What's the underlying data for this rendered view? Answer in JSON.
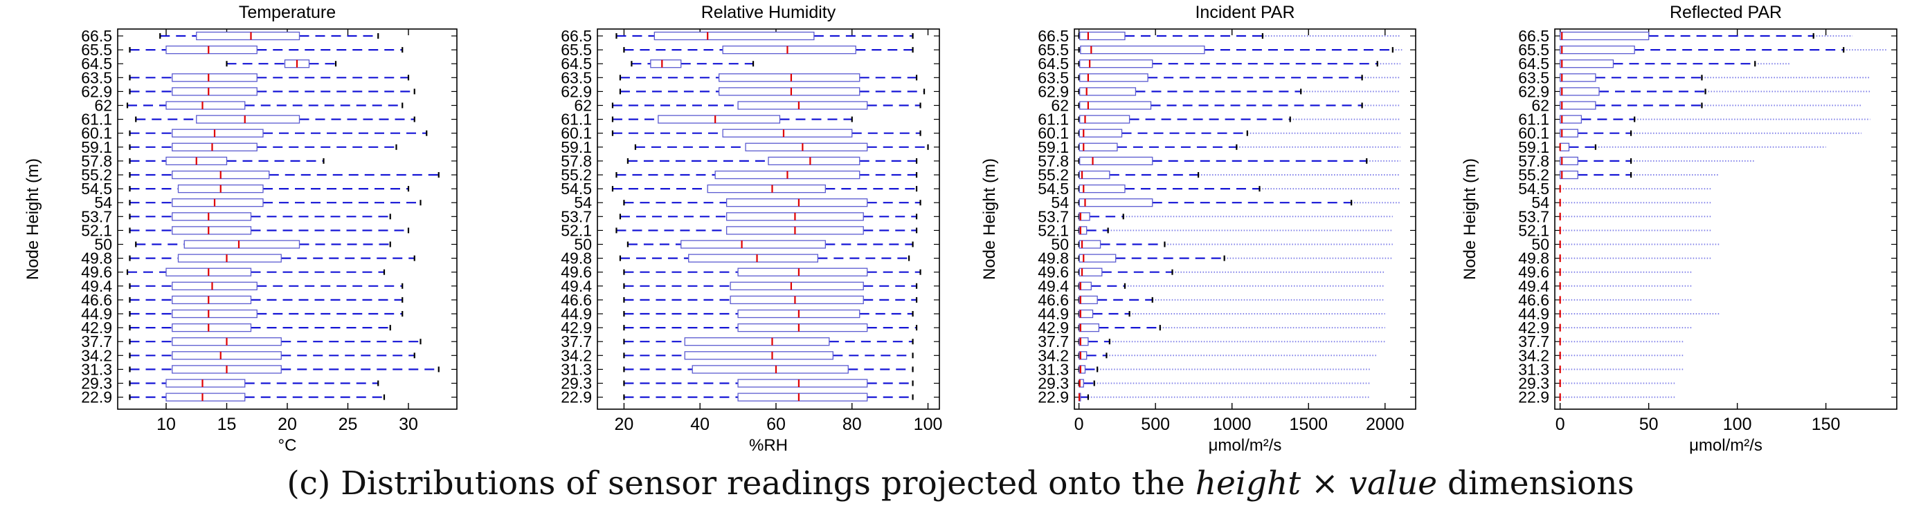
{
  "heights": [
    "66.5",
    "65.5",
    "64.5",
    "63.5",
    "62.9",
    "62",
    "61.1",
    "60.1",
    "59.1",
    "57.8",
    "55.2",
    "54.5",
    "54",
    "53.7",
    "52.1",
    "50",
    "49.8",
    "49.6",
    "49.4",
    "46.6",
    "44.9",
    "42.9",
    "37.7",
    "34.2",
    "31.3",
    "29.3",
    "22.9"
  ],
  "caption": {
    "prefix": "(c) Distributions of sensor readings projected onto the ",
    "italic1": "height",
    "times": " × ",
    "italic2": "value",
    "suffix": " dimensions"
  },
  "colors": {
    "box": "#5a5ad0",
    "whisker": "#1515d6",
    "median": "#e00000",
    "outlier": "#1515d6",
    "axis": "#000000"
  },
  "chart_data": [
    {
      "type": "boxplot",
      "title": "Temperature",
      "xlabel": "°C",
      "ylabel": "Node Height (m)",
      "xlim": [
        6,
        34
      ],
      "xticks": [
        10,
        15,
        20,
        25,
        30
      ],
      "categories": [
        "66.5",
        "65.5",
        "64.5",
        "63.5",
        "62.9",
        "62",
        "61.1",
        "60.1",
        "59.1",
        "57.8",
        "55.2",
        "54.5",
        "54",
        "53.7",
        "52.1",
        "50",
        "49.8",
        "49.6",
        "49.4",
        "46.6",
        "44.9",
        "42.9",
        "37.7",
        "34.2",
        "31.3",
        "29.3",
        "22.9"
      ],
      "boxes": [
        {
          "wlo": 9.5,
          "q1": 12.5,
          "med": 17.0,
          "q3": 21.0,
          "whi": 27.5
        },
        {
          "wlo": 7.0,
          "q1": 10.0,
          "med": 13.5,
          "q3": 17.5,
          "whi": 29.5
        },
        {
          "wlo": 15.0,
          "q1": 19.8,
          "med": 20.8,
          "q3": 21.8,
          "whi": 24.0
        },
        {
          "wlo": 7.0,
          "q1": 10.5,
          "med": 13.5,
          "q3": 17.5,
          "whi": 30.0
        },
        {
          "wlo": 7.0,
          "q1": 10.5,
          "med": 13.5,
          "q3": 17.5,
          "whi": 30.5
        },
        {
          "wlo": 6.8,
          "q1": 10.0,
          "med": 13.0,
          "q3": 16.5,
          "whi": 29.5
        },
        {
          "wlo": 7.5,
          "q1": 12.5,
          "med": 16.5,
          "q3": 21.0,
          "whi": 30.5
        },
        {
          "wlo": 7.0,
          "q1": 10.5,
          "med": 14.0,
          "q3": 18.0,
          "whi": 31.5
        },
        {
          "wlo": 7.0,
          "q1": 10.5,
          "med": 13.8,
          "q3": 17.5,
          "whi": 29.0
        },
        {
          "wlo": 7.0,
          "q1": 10.0,
          "med": 12.5,
          "q3": 15.0,
          "whi": 23.0
        },
        {
          "wlo": 7.0,
          "q1": 10.5,
          "med": 14.5,
          "q3": 18.5,
          "whi": 32.5
        },
        {
          "wlo": 7.0,
          "q1": 11.0,
          "med": 14.5,
          "q3": 18.0,
          "whi": 30.0
        },
        {
          "wlo": 7.0,
          "q1": 10.5,
          "med": 14.0,
          "q3": 18.0,
          "whi": 31.0
        },
        {
          "wlo": 7.0,
          "q1": 10.5,
          "med": 13.5,
          "q3": 17.0,
          "whi": 28.5
        },
        {
          "wlo": 7.0,
          "q1": 10.5,
          "med": 13.5,
          "q3": 17.0,
          "whi": 30.0
        },
        {
          "wlo": 7.5,
          "q1": 11.5,
          "med": 16.0,
          "q3": 21.0,
          "whi": 28.5
        },
        {
          "wlo": 7.0,
          "q1": 11.0,
          "med": 15.0,
          "q3": 19.5,
          "whi": 30.5
        },
        {
          "wlo": 6.8,
          "q1": 10.0,
          "med": 13.5,
          "q3": 17.0,
          "whi": 28.0
        },
        {
          "wlo": 7.0,
          "q1": 10.5,
          "med": 13.8,
          "q3": 17.5,
          "whi": 29.5
        },
        {
          "wlo": 7.0,
          "q1": 10.5,
          "med": 13.5,
          "q3": 17.0,
          "whi": 29.5
        },
        {
          "wlo": 7.0,
          "q1": 10.5,
          "med": 13.5,
          "q3": 17.5,
          "whi": 29.5
        },
        {
          "wlo": 7.0,
          "q1": 10.5,
          "med": 13.5,
          "q3": 17.0,
          "whi": 28.5
        },
        {
          "wlo": 7.0,
          "q1": 10.5,
          "med": 15.0,
          "q3": 19.5,
          "whi": 31.0
        },
        {
          "wlo": 7.0,
          "q1": 10.5,
          "med": 14.5,
          "q3": 19.5,
          "whi": 30.5
        },
        {
          "wlo": 7.0,
          "q1": 10.5,
          "med": 15.0,
          "q3": 19.5,
          "whi": 32.5
        },
        {
          "wlo": 7.0,
          "q1": 10.0,
          "med": 13.0,
          "q3": 16.5,
          "whi": 27.5
        },
        {
          "wlo": 7.0,
          "q1": 10.0,
          "med": 13.0,
          "q3": 16.5,
          "whi": 28.0
        }
      ]
    },
    {
      "type": "boxplot",
      "title": "Relative Humidity",
      "xlabel": "%RH",
      "ylabel": "",
      "xlim": [
        13,
        103
      ],
      "xticks": [
        20,
        40,
        60,
        80,
        100
      ],
      "categories": [
        "66.5",
        "65.5",
        "64.5",
        "63.5",
        "62.9",
        "62",
        "61.1",
        "60.1",
        "59.1",
        "57.8",
        "55.2",
        "54.5",
        "54",
        "53.7",
        "52.1",
        "50",
        "49.8",
        "49.6",
        "49.4",
        "46.6",
        "44.9",
        "42.9",
        "37.7",
        "34.2",
        "31.3",
        "29.3",
        "22.9"
      ],
      "boxes": [
        {
          "wlo": 18.0,
          "q1": 28.0,
          "med": 42.0,
          "q3": 70.0,
          "whi": 96.0
        },
        {
          "wlo": 20.0,
          "q1": 46.0,
          "med": 63.0,
          "q3": 81.0,
          "whi": 96.0
        },
        {
          "wlo": 22.0,
          "q1": 27.0,
          "med": 30.0,
          "q3": 35.0,
          "whi": 54.0
        },
        {
          "wlo": 19.0,
          "q1": 45.0,
          "med": 64.0,
          "q3": 82.0,
          "whi": 97.0
        },
        {
          "wlo": 19.0,
          "q1": 45.0,
          "med": 64.0,
          "q3": 82.0,
          "whi": 99.0
        },
        {
          "wlo": 17.0,
          "q1": 50.0,
          "med": 66.0,
          "q3": 84.0,
          "whi": 98.0
        },
        {
          "wlo": 17.0,
          "q1": 29.0,
          "med": 44.0,
          "q3": 61.0,
          "whi": 80.0
        },
        {
          "wlo": 17.0,
          "q1": 46.0,
          "med": 62.0,
          "q3": 80.0,
          "whi": 98.0
        },
        {
          "wlo": 23.0,
          "q1": 52.0,
          "med": 67.0,
          "q3": 84.0,
          "whi": 100.0
        },
        {
          "wlo": 21.0,
          "q1": 58.0,
          "med": 69.0,
          "q3": 82.0,
          "whi": 97.0
        },
        {
          "wlo": 18.0,
          "q1": 44.0,
          "med": 63.0,
          "q3": 82.0,
          "whi": 97.0
        },
        {
          "wlo": 17.0,
          "q1": 42.0,
          "med": 59.0,
          "q3": 73.0,
          "whi": 97.0
        },
        {
          "wlo": 20.0,
          "q1": 47.0,
          "med": 66.0,
          "q3": 84.0,
          "whi": 98.0
        },
        {
          "wlo": 19.0,
          "q1": 47.0,
          "med": 65.0,
          "q3": 83.0,
          "whi": 97.0
        },
        {
          "wlo": 18.0,
          "q1": 47.0,
          "med": 65.0,
          "q3": 83.0,
          "whi": 97.0
        },
        {
          "wlo": 21.0,
          "q1": 35.0,
          "med": 51.0,
          "q3": 73.0,
          "whi": 96.0
        },
        {
          "wlo": 19.0,
          "q1": 37.0,
          "med": 55.0,
          "q3": 71.0,
          "whi": 95.0
        },
        {
          "wlo": 20.0,
          "q1": 50.0,
          "med": 66.0,
          "q3": 84.0,
          "whi": 98.0
        },
        {
          "wlo": 20.0,
          "q1": 48.0,
          "med": 64.0,
          "q3": 83.0,
          "whi": 97.0
        },
        {
          "wlo": 20.0,
          "q1": 48.0,
          "med": 65.0,
          "q3": 83.0,
          "whi": 97.0
        },
        {
          "wlo": 20.0,
          "q1": 50.0,
          "med": 66.0,
          "q3": 82.0,
          "whi": 96.0
        },
        {
          "wlo": 20.0,
          "q1": 50.0,
          "med": 66.0,
          "q3": 84.0,
          "whi": 97.0
        },
        {
          "wlo": 20.0,
          "q1": 36.0,
          "med": 59.0,
          "q3": 74.0,
          "whi": 96.0
        },
        {
          "wlo": 20.0,
          "q1": 36.0,
          "med": 59.0,
          "q3": 75.0,
          "whi": 96.0
        },
        {
          "wlo": 20.0,
          "q1": 38.0,
          "med": 60.0,
          "q3": 79.0,
          "whi": 96.0
        },
        {
          "wlo": 20.0,
          "q1": 50.0,
          "med": 66.0,
          "q3": 84.0,
          "whi": 96.0
        },
        {
          "wlo": 20.0,
          "q1": 50.0,
          "med": 66.0,
          "q3": 84.0,
          "whi": 96.0
        }
      ]
    },
    {
      "type": "boxplot",
      "title": "Incident PAR",
      "xlabel": "μmol/m²/s",
      "ylabel": "Node Height (m)",
      "xlim": [
        -30,
        2200
      ],
      "xticks": [
        0,
        500,
        1000,
        1500,
        2000
      ],
      "categories": [
        "66.5",
        "65.5",
        "64.5",
        "63.5",
        "62.9",
        "62",
        "61.1",
        "60.1",
        "59.1",
        "57.8",
        "55.2",
        "54.5",
        "54",
        "53.7",
        "52.1",
        "50",
        "49.8",
        "49.6",
        "49.4",
        "46.6",
        "44.9",
        "42.9",
        "37.7",
        "34.2",
        "31.3",
        "29.3",
        "22.9"
      ],
      "boxes": [
        {
          "wlo": 0,
          "q1": 5,
          "med": 60,
          "q3": 300,
          "whi": 1200,
          "outmax": 2100
        },
        {
          "wlo": 0,
          "q1": 10,
          "med": 80,
          "q3": 820,
          "whi": 2050,
          "outmax": 2120
        },
        {
          "wlo": 0,
          "q1": 5,
          "med": 70,
          "q3": 480,
          "whi": 1950,
          "outmax": 2100
        },
        {
          "wlo": 0,
          "q1": 5,
          "med": 60,
          "q3": 450,
          "whi": 1850,
          "outmax": 2100
        },
        {
          "wlo": 0,
          "q1": 5,
          "med": 50,
          "q3": 370,
          "whi": 1450,
          "outmax": 2100
        },
        {
          "wlo": 0,
          "q1": 5,
          "med": 60,
          "q3": 470,
          "whi": 1850,
          "outmax": 2100
        },
        {
          "wlo": 0,
          "q1": 5,
          "med": 40,
          "q3": 330,
          "whi": 1380,
          "outmax": 2100
        },
        {
          "wlo": 0,
          "q1": 3,
          "med": 30,
          "q3": 280,
          "whi": 1100,
          "outmax": 2100
        },
        {
          "wlo": 0,
          "q1": 3,
          "med": 30,
          "q3": 250,
          "whi": 1030,
          "outmax": 2100
        },
        {
          "wlo": 0,
          "q1": 5,
          "med": 90,
          "q3": 480,
          "whi": 1880,
          "outmax": 2100
        },
        {
          "wlo": 0,
          "q1": 3,
          "med": 20,
          "q3": 200,
          "whi": 780,
          "outmax": 2100
        },
        {
          "wlo": 0,
          "q1": 3,
          "med": 30,
          "q3": 300,
          "whi": 1180,
          "outmax": 2100
        },
        {
          "wlo": 0,
          "q1": 3,
          "med": 40,
          "q3": 480,
          "whi": 1780,
          "outmax": 2100
        },
        {
          "wlo": 0,
          "q1": 2,
          "med": 10,
          "q3": 70,
          "whi": 290,
          "outmax": 2050
        },
        {
          "wlo": 0,
          "q1": 2,
          "med": 10,
          "q3": 50,
          "whi": 190,
          "outmax": 2050
        },
        {
          "wlo": 0,
          "q1": 3,
          "med": 20,
          "q3": 140,
          "whi": 560,
          "outmax": 2050
        },
        {
          "wlo": 0,
          "q1": 3,
          "med": 30,
          "q3": 240,
          "whi": 950,
          "outmax": 2050
        },
        {
          "wlo": 0,
          "q1": 3,
          "med": 20,
          "q3": 150,
          "whi": 610,
          "outmax": 2000
        },
        {
          "wlo": 0,
          "q1": 2,
          "med": 10,
          "q3": 80,
          "whi": 300,
          "outmax": 2000
        },
        {
          "wlo": 0,
          "q1": 2,
          "med": 10,
          "q3": 120,
          "whi": 480,
          "outmax": 2000
        },
        {
          "wlo": 0,
          "q1": 2,
          "med": 10,
          "q3": 90,
          "whi": 330,
          "outmax": 2000
        },
        {
          "wlo": 0,
          "q1": 2,
          "med": 10,
          "q3": 130,
          "whi": 530,
          "outmax": 2000
        },
        {
          "wlo": 0,
          "q1": 2,
          "med": 10,
          "q3": 60,
          "whi": 200,
          "outmax": 2000
        },
        {
          "wlo": 0,
          "q1": 2,
          "med": 10,
          "q3": 50,
          "whi": 180,
          "outmax": 1950
        },
        {
          "wlo": 0,
          "q1": 2,
          "med": 10,
          "q3": 40,
          "whi": 120,
          "outmax": 1900
        },
        {
          "wlo": 0,
          "q1": 2,
          "med": 5,
          "q3": 30,
          "whi": 100,
          "outmax": 1900
        },
        {
          "wlo": 0,
          "q1": 0,
          "med": 2,
          "q3": 10,
          "whi": 60,
          "outmax": 1900
        }
      ]
    },
    {
      "type": "boxplot",
      "title": "Reflected PAR",
      "xlabel": "μmol/m²/s",
      "ylabel": "Node Height (m)",
      "xlim": [
        -3,
        190
      ],
      "xticks": [
        0,
        50,
        100,
        150
      ],
      "categories": [
        "66.5",
        "65.5",
        "64.5",
        "63.5",
        "62.9",
        "62",
        "61.1",
        "60.1",
        "59.1",
        "57.8",
        "55.2",
        "54.5",
        "54",
        "53.7",
        "52.1",
        "50",
        "49.8",
        "49.6",
        "49.4",
        "46.6",
        "44.9",
        "42.9",
        "37.7",
        "34.2",
        "31.3",
        "29.3",
        "22.9"
      ],
      "boxes": [
        {
          "wlo": 0,
          "q1": 0,
          "med": 1,
          "q3": 50,
          "whi": 143,
          "outmax": 165
        },
        {
          "wlo": 0,
          "q1": 0,
          "med": 1,
          "q3": 42,
          "whi": 160,
          "outmax": 185
        },
        {
          "wlo": 0,
          "q1": 0,
          "med": 1,
          "q3": 30,
          "whi": 110,
          "outmax": 130
        },
        {
          "wlo": 0,
          "q1": 0,
          "med": 1,
          "q3": 20,
          "whi": 80,
          "outmax": 175
        },
        {
          "wlo": 0,
          "q1": 0,
          "med": 1,
          "q3": 22,
          "whi": 82,
          "outmax": 175
        },
        {
          "wlo": 0,
          "q1": 0,
          "med": 1,
          "q3": 20,
          "whi": 80,
          "outmax": 170
        },
        {
          "wlo": 0,
          "q1": 0,
          "med": 1,
          "q3": 12,
          "whi": 42,
          "outmax": 175
        },
        {
          "wlo": 0,
          "q1": 0,
          "med": 1,
          "q3": 10,
          "whi": 40,
          "outmax": 170
        },
        {
          "wlo": 0,
          "q1": 0,
          "med": 0,
          "q3": 5,
          "whi": 20,
          "outmax": 150
        },
        {
          "wlo": 0,
          "q1": 0,
          "med": 1,
          "q3": 10,
          "whi": 40,
          "outmax": 110
        },
        {
          "wlo": 0,
          "q1": 0,
          "med": 1,
          "q3": 10,
          "whi": 40,
          "outmax": 90
        },
        {
          "wlo": 0,
          "q1": 0,
          "med": 0,
          "q3": 0,
          "whi": 0,
          "outmax": 85
        },
        {
          "wlo": 0,
          "q1": 0,
          "med": 0,
          "q3": 0,
          "whi": 0,
          "outmax": 85
        },
        {
          "wlo": 0,
          "q1": 0,
          "med": 0,
          "q3": 0,
          "whi": 0,
          "outmax": 85
        },
        {
          "wlo": 0,
          "q1": 0,
          "med": 0,
          "q3": 0,
          "whi": 0,
          "outmax": 85
        },
        {
          "wlo": 0,
          "q1": 0,
          "med": 0,
          "q3": 0,
          "whi": 0,
          "outmax": 90
        },
        {
          "wlo": 0,
          "q1": 0,
          "med": 0,
          "q3": 0,
          "whi": 0,
          "outmax": 85
        },
        {
          "wlo": 0,
          "q1": 0,
          "med": 0,
          "q3": 0,
          "whi": 0,
          "outmax": 75
        },
        {
          "wlo": 0,
          "q1": 0,
          "med": 0,
          "q3": 0,
          "whi": 0,
          "outmax": 75
        },
        {
          "wlo": 0,
          "q1": 0,
          "med": 0,
          "q3": 0,
          "whi": 0,
          "outmax": 75
        },
        {
          "wlo": 0,
          "q1": 0,
          "med": 0,
          "q3": 0,
          "whi": 0,
          "outmax": 90
        },
        {
          "wlo": 0,
          "q1": 0,
          "med": 0,
          "q3": 0,
          "whi": 0,
          "outmax": 75
        },
        {
          "wlo": 0,
          "q1": 0,
          "med": 0,
          "q3": 0,
          "whi": 0,
          "outmax": 70
        },
        {
          "wlo": 0,
          "q1": 0,
          "med": 0,
          "q3": 0,
          "whi": 0,
          "outmax": 70
        },
        {
          "wlo": 0,
          "q1": 0,
          "med": 0,
          "q3": 0,
          "whi": 0,
          "outmax": 70
        },
        {
          "wlo": 0,
          "q1": 0,
          "med": 0,
          "q3": 0,
          "whi": 0,
          "outmax": 65
        },
        {
          "wlo": 0,
          "q1": 0,
          "med": 0,
          "q3": 0,
          "whi": 0,
          "outmax": 65
        }
      ]
    }
  ]
}
